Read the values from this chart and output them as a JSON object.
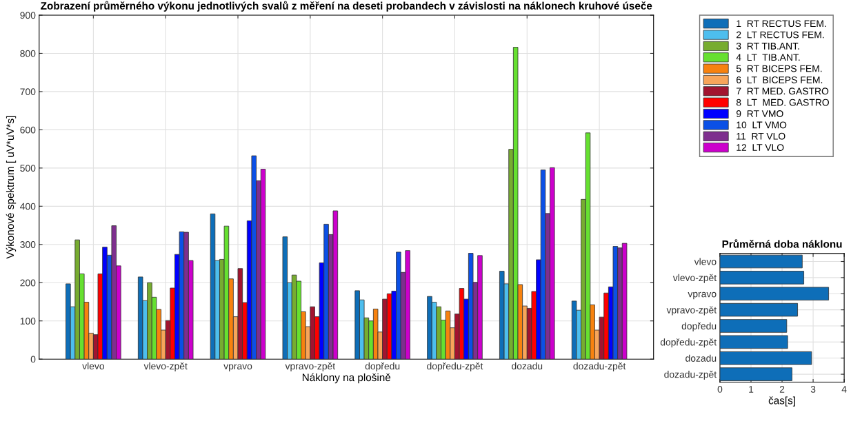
{
  "chart_data": [
    {
      "type": "bar",
      "title": "Zobrazení průměrného výkonu jednotlivých svalů z měření na deseti probandech v závislosti na náklonech kruhové úseče",
      "xlabel": "Náklony na plošině",
      "ylabel": "Výkonové spektrum [ uV*uV*s]",
      "categories": [
        "vlevo",
        "vlevo-zpět",
        "vpravo",
        "vpravo-zpět",
        "dopředu",
        "dopředu-zpět",
        "dozadu",
        "dozadu-zpět"
      ],
      "series": [
        {
          "name": "1  RT RECTUS FEM.",
          "color": "#0e6eb8",
          "values": [
            197,
            215,
            380,
            320,
            179,
            164,
            230,
            152
          ]
        },
        {
          "name": "2  LT RECTUS FEM.",
          "color": "#4dbeee",
          "values": [
            137,
            153,
            258,
            200,
            155,
            149,
            197,
            128
          ]
        },
        {
          "name": "3  RT TIB.ANT.",
          "color": "#77ac30",
          "values": [
            312,
            200,
            261,
            220,
            108,
            137,
            549,
            418
          ]
        },
        {
          "name": "4  LT  TIB.ANT.",
          "color": "#66e030",
          "values": [
            223,
            162,
            348,
            204,
            100,
            102,
            816,
            592
          ]
        },
        {
          "name": "5  RT BICEPS FEM.",
          "color": "#f7820f",
          "values": [
            149,
            130,
            210,
            124,
            131,
            126,
            195,
            142
          ]
        },
        {
          "name": "6  LT  BICEPS FEM.",
          "color": "#f7a55a",
          "values": [
            68,
            76,
            111,
            85,
            71,
            82,
            139,
            76
          ]
        },
        {
          "name": "7  RT MED. GASTRO",
          "color": "#a2142f",
          "values": [
            64,
            101,
            237,
            137,
            157,
            118,
            133,
            110
          ]
        },
        {
          "name": "8  LT  MED. GASTRO",
          "color": "#ff0000",
          "values": [
            223,
            186,
            148,
            111,
            171,
            185,
            177,
            173
          ]
        },
        {
          "name": "9  RT VMO",
          "color": "#0000ff",
          "values": [
            293,
            274,
            362,
            252,
            178,
            157,
            260,
            189
          ]
        },
        {
          "name": "10  LT VMO",
          "color": "#0b50e6",
          "values": [
            272,
            333,
            532,
            353,
            280,
            277,
            495,
            295
          ]
        },
        {
          "name": "11  RT VLO",
          "color": "#7e2f8e",
          "values": [
            349,
            332,
            467,
            326,
            227,
            201,
            381,
            291
          ]
        },
        {
          "name": "12  LT VLO",
          "color": "#cc00cc",
          "values": [
            244,
            258,
            497,
            388,
            284,
            271,
            501,
            303
          ]
        }
      ],
      "ylim": [
        0,
        900
      ],
      "yticks": [
        0,
        100,
        200,
        300,
        400,
        500,
        600,
        700,
        800,
        900
      ],
      "grid": true,
      "legend": "right"
    },
    {
      "type": "bar",
      "orientation": "horizontal",
      "title": "Průměrná doba náklonu",
      "xlabel": "čas[s]",
      "categories": [
        "vlevo",
        "vlevo-zpět",
        "vpravo",
        "vpravo-zpět",
        "dopředu",
        "dopředu-zpět",
        "dozadu",
        "dozadu-zpět"
      ],
      "series": [
        {
          "color": "#0e6eb8",
          "values": [
            2.65,
            2.7,
            3.5,
            2.5,
            2.15,
            2.18,
            2.95,
            2.32
          ]
        }
      ],
      "xlim": [
        0,
        4
      ],
      "xticks": [
        0,
        1,
        2,
        3,
        4
      ],
      "grid": true
    }
  ]
}
